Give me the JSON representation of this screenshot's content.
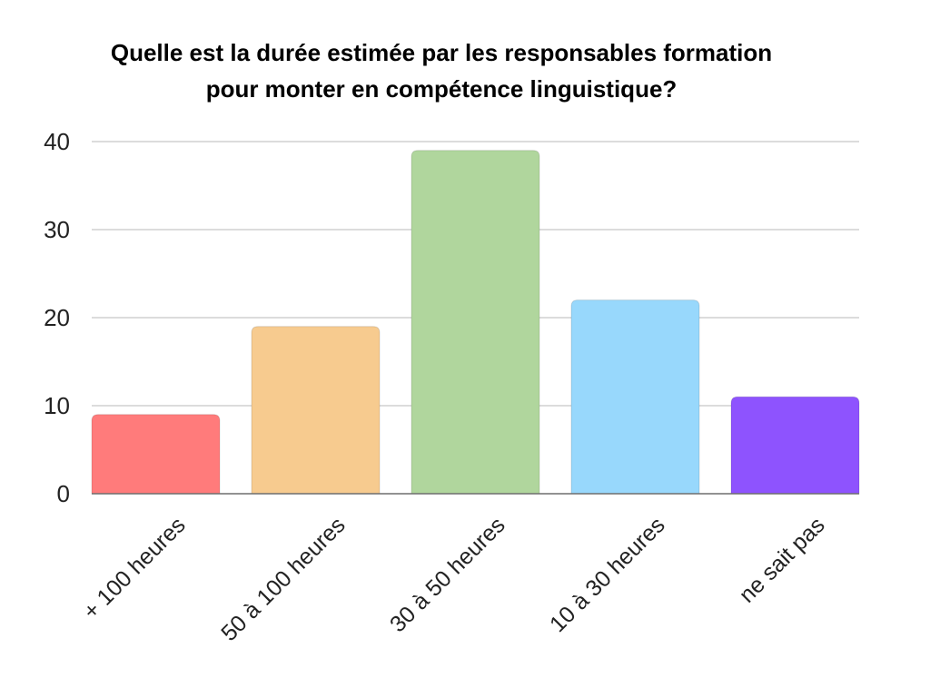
{
  "chart_data": {
    "type": "bar",
    "title_lines": [
      "Quelle est la durée estimée par les responsables formation",
      "pour monter en compétence linguistique?"
    ],
    "categories": [
      "+ 100 heures",
      "50 à 100 heures",
      "30 à 50 heures",
      "10 à 30 heures",
      "ne sait pas"
    ],
    "values": [
      9,
      19,
      39,
      22,
      11
    ],
    "colors": [
      "#FF7B7B",
      "#F7CB8F",
      "#B0D69D",
      "#98D8FC",
      "#8E53FE"
    ],
    "xlabel": "",
    "ylabel": "",
    "ylim": [
      0,
      40
    ],
    "yticks": [
      0,
      10,
      20,
      30,
      40
    ],
    "grid": true,
    "legend": "none"
  }
}
